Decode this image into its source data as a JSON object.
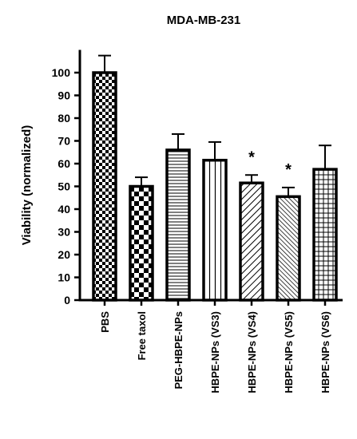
{
  "chart_data": {
    "type": "bar",
    "title": "MDA-MB-231",
    "xlabel": "",
    "ylabel": "Viability (normalized)",
    "ylim": [
      0,
      110
    ],
    "yticks": [
      0,
      10,
      20,
      30,
      40,
      50,
      60,
      70,
      80,
      90,
      100
    ],
    "grid": false,
    "categories": [
      "PBS",
      "Free taxol",
      "PEG-HBPE-NPs",
      "HBPE-NPs (VS3)",
      "HBPE-NPs (VS4)",
      "HBPE-NPs (VS5)",
      "HBPE-NPs (VS6)"
    ],
    "values": [
      100,
      50,
      66,
      61.5,
      51.5,
      45.5,
      57.5
    ],
    "errors": [
      7.5,
      4,
      7,
      8,
      3.5,
      4,
      10.5
    ],
    "annotations": [
      "",
      "",
      "",
      "",
      "*",
      "*",
      ""
    ],
    "patterns": [
      "large-checker",
      "small-checker",
      "horizontal-lines",
      "vertical-lines",
      "diagonal-lines",
      "dense-diagonal-lines",
      "grid-lines"
    ]
  }
}
